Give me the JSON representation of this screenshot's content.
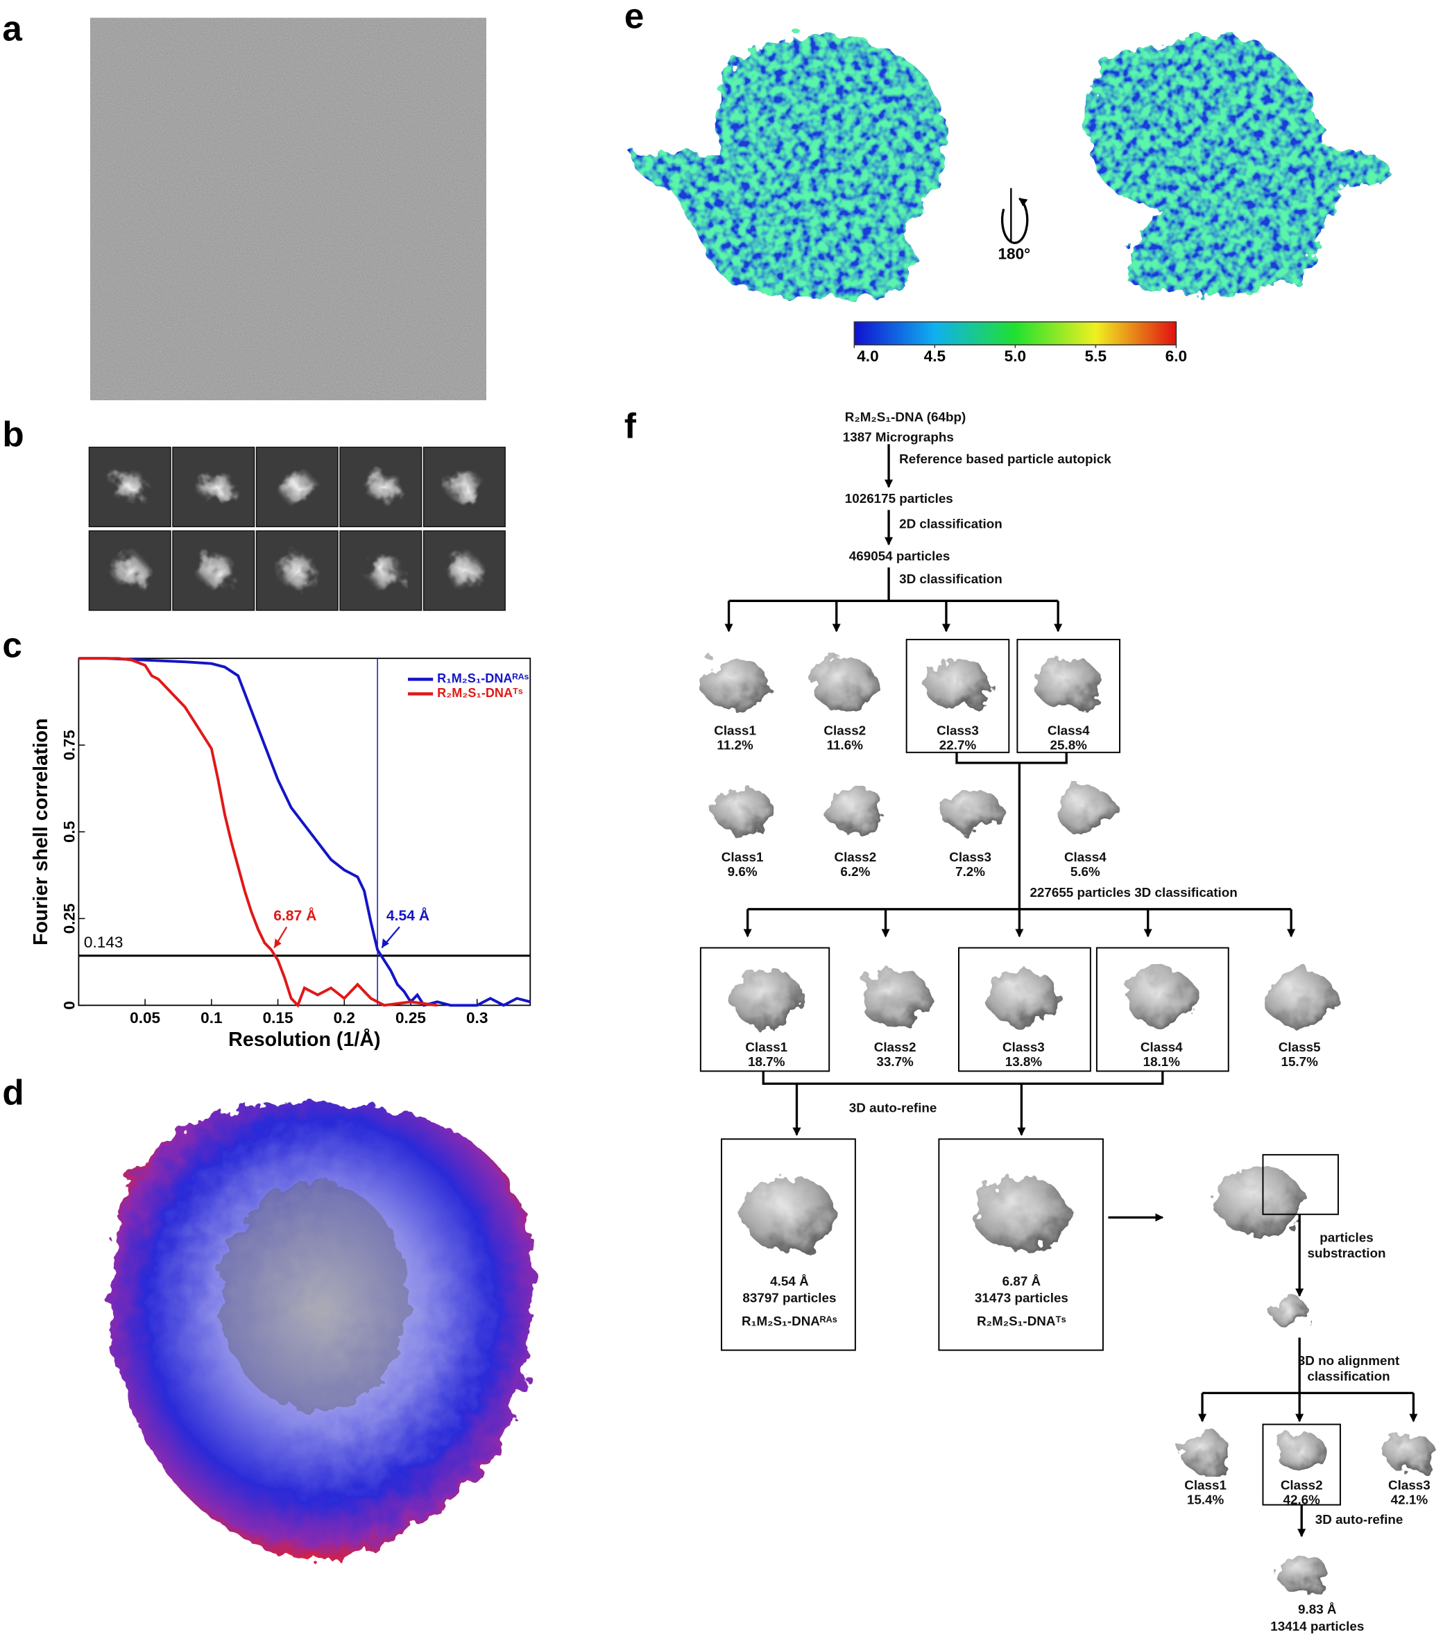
{
  "panel_labels": [
    "a",
    "b",
    "c",
    "d",
    "e",
    "f"
  ],
  "chart_data": {
    "type": "line",
    "xlabel": "Resolution (1/Å)",
    "ylabel": "Fourier shell correlation",
    "xlim": [
      0,
      0.34
    ],
    "ylim": [
      0,
      1
    ],
    "xticks": [
      0.05,
      0.1,
      0.15,
      0.2,
      0.25,
      0.3
    ],
    "yticks": [
      0,
      0.25,
      0.5,
      0.75
    ],
    "threshold": {
      "value": 0.143,
      "label": "0.143"
    },
    "cutoff_x": 0.225,
    "series": [
      {
        "name": "R₁M₂S₁-DNAᴿᴬˢ",
        "color": "#1414c8",
        "x": [
          0,
          0.02,
          0.05,
          0.08,
          0.1,
          0.11,
          0.12,
          0.125,
          0.13,
          0.14,
          0.15,
          0.16,
          0.17,
          0.18,
          0.19,
          0.2,
          0.21,
          0.215,
          0.22,
          0.225,
          0.23,
          0.235,
          0.24,
          0.245,
          0.25,
          0.255,
          0.26,
          0.27,
          0.28,
          0.3,
          0.31,
          0.32,
          0.33,
          0.34
        ],
        "values": [
          1,
          1,
          0.995,
          0.99,
          0.985,
          0.975,
          0.95,
          0.9,
          0.85,
          0.75,
          0.65,
          0.57,
          0.52,
          0.47,
          0.42,
          0.39,
          0.37,
          0.33,
          0.24,
          0.16,
          0.13,
          0.1,
          0.06,
          0.04,
          0.01,
          0.03,
          0,
          0.01,
          0,
          0,
          0.02,
          0,
          0.02,
          0.01
        ]
      },
      {
        "name": "R₂M₂S₁-DNAᵀˢ",
        "color": "#e01818",
        "x": [
          0,
          0.03,
          0.04,
          0.05,
          0.055,
          0.06,
          0.065,
          0.07,
          0.075,
          0.08,
          0.085,
          0.09,
          0.095,
          0.1,
          0.105,
          0.11,
          0.115,
          0.12,
          0.125,
          0.13,
          0.135,
          0.14,
          0.145,
          0.15,
          0.155,
          0.16,
          0.165,
          0.17,
          0.18,
          0.19,
          0.2,
          0.21,
          0.22,
          0.23,
          0.25,
          0.27
        ],
        "values": [
          1,
          1,
          0.995,
          0.98,
          0.95,
          0.94,
          0.92,
          0.9,
          0.88,
          0.86,
          0.83,
          0.8,
          0.77,
          0.74,
          0.65,
          0.55,
          0.47,
          0.4,
          0.33,
          0.27,
          0.22,
          0.18,
          0.16,
          0.13,
          0.08,
          0.02,
          0,
          0.05,
          0.03,
          0.05,
          0.02,
          0.06,
          0.02,
          0,
          0.01,
          0
        ]
      }
    ],
    "annotations": [
      {
        "text": "6.87 Å",
        "series": 1
      },
      {
        "text": "4.54 Å",
        "series": 0
      }
    ]
  },
  "e": {
    "rotation": "180°",
    "colorbar": {
      "lim": [
        4,
        6
      ],
      "ticks": [
        {
          "value": 4,
          "label": "4.0"
        },
        4.5,
        {
          "value": 5,
          "label": "5.0"
        },
        5.5,
        {
          "value": 6,
          "label": "6.0"
        }
      ]
    }
  },
  "flowchart": {
    "start": [
      "R₂M₂S₁-DNA (64bp)",
      "1387 Micrographs"
    ],
    "steps": [
      "Reference based particle autopick",
      "1026175 particles",
      "2D classification",
      "469054 particles",
      "3D classification"
    ],
    "round1_top": [
      {
        "name": "Class1",
        "percent": "11.2%"
      },
      {
        "name": "Class2",
        "percent": "11.6%"
      },
      {
        "name": "Class3",
        "percent": "22.7%"
      },
      {
        "name": "Class4",
        "percent": "25.8%"
      }
    ],
    "round1_bottom": [
      {
        "name": "Class1",
        "percent": "9.6%"
      },
      {
        "name": "Class2",
        "percent": "6.2%"
      },
      {
        "name": "Class3",
        "percent": "7.2%"
      },
      {
        "name": "Class4",
        "percent": "5.6%"
      }
    ],
    "round2_step": "227655 particles 3D classification",
    "round2": [
      {
        "name": "Class1",
        "percent": "18.7%"
      },
      {
        "name": "Class2",
        "percent": "33.7%"
      },
      {
        "name": "Class3",
        "percent": "13.8%"
      },
      {
        "name": "Class4",
        "percent": "18.1%"
      },
      {
        "name": "Class5",
        "percent": "15.7%"
      }
    ],
    "refine_step": "3D auto-refine",
    "maps": [
      {
        "resolution": "4.54  Å",
        "particles": "83797 particles",
        "name": "R₁M₂S₁-DNAᴿᴬˢ"
      },
      {
        "resolution": "6.87  Å",
        "particles": "31473 particles",
        "name": "R₂M₂S₁-DNAᵀˢ"
      }
    ],
    "subtraction": [
      "particles",
      "substraction"
    ],
    "focused_step": [
      "3D no alignment",
      "classification"
    ],
    "round3": [
      {
        "name": "Class1",
        "percent": "15.4%"
      },
      {
        "name": "Class2",
        "percent": "42.6%"
      },
      {
        "name": "Class3",
        "percent": "42.1%"
      }
    ],
    "final_step": "3D auto-refine",
    "final": [
      "9.83  Å",
      "13414 particles"
    ]
  }
}
